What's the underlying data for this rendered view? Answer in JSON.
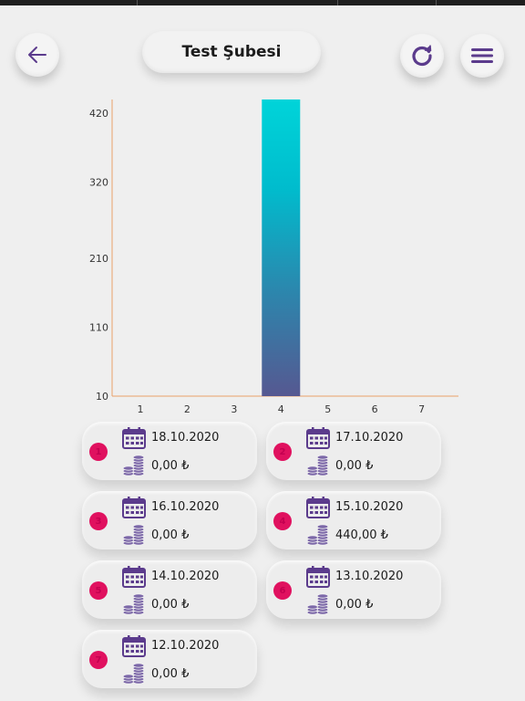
{
  "header": {
    "title": "Test Şubesi",
    "back_icon": "arrow-left-icon",
    "refresh_icon": "refresh-icon",
    "menu_icon": "hamburger-menu-icon"
  },
  "colors": {
    "accent": "#5b3b8c",
    "badge": "#e0115f",
    "bar_top": "#00d4d9",
    "bar_bottom": "#565891",
    "axis": "#e8a06a"
  },
  "chart_data": {
    "type": "bar",
    "categories": [
      "1",
      "2",
      "3",
      "4",
      "5",
      "6",
      "7"
    ],
    "values": [
      0,
      0,
      0,
      440,
      0,
      0,
      0
    ],
    "y_ticks": [
      "420",
      "320",
      "210",
      "110",
      "10"
    ],
    "ylim": [
      10,
      440
    ],
    "grid": false
  },
  "cards": [
    {
      "index": "1",
      "date": "18.10.2020",
      "amount": "0,00 ₺"
    },
    {
      "index": "2",
      "date": "17.10.2020",
      "amount": "0,00 ₺"
    },
    {
      "index": "3",
      "date": "16.10.2020",
      "amount": "0,00 ₺"
    },
    {
      "index": "4",
      "date": "15.10.2020",
      "amount": "440,00 ₺"
    },
    {
      "index": "5",
      "date": "14.10.2020",
      "amount": "0,00 ₺"
    },
    {
      "index": "6",
      "date": "13.10.2020",
      "amount": "0,00 ₺"
    },
    {
      "index": "7",
      "date": "12.10.2020",
      "amount": "0,00 ₺"
    }
  ]
}
